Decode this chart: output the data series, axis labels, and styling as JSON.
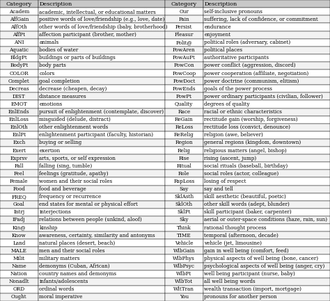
{
  "left_rows": [
    [
      "Academ",
      "academic, intellectual, or educational matters"
    ],
    [
      "AffGain",
      "positive words of love/friendship (e.g., love, date)"
    ],
    [
      "AffOth",
      "other words of love/friendship (baby, brotherhood)"
    ],
    [
      "AffPt",
      "affection participant (brother, mother)"
    ],
    [
      "ANI",
      "animals"
    ],
    [
      "Aquatic",
      "bodies of water"
    ],
    [
      "BldgPt",
      "buildings or parts of buildings"
    ],
    [
      "BodyPt",
      "body parts"
    ],
    [
      "COLOR",
      "colors"
    ],
    [
      "Complet",
      "goal completion"
    ],
    [
      "Decreas",
      "decrease (cheapen, decay)"
    ],
    [
      "DIST",
      "distance measures"
    ],
    [
      "EMOT",
      "emotions"
    ],
    [
      "EnlEnds",
      "pursuit of enlightenment (contemplate, discover)"
    ],
    [
      "EnlLoss",
      "misguided (delude, distract)"
    ],
    [
      "EnlOth",
      "other enlightenment words"
    ],
    [
      "EnlPt",
      "enlightenment participant (faculty, historian)"
    ],
    [
      "Exch",
      "buying or selling"
    ],
    [
      "Exert",
      "exertion"
    ],
    [
      "Exprsv",
      "arts, sports, or self expression"
    ],
    [
      "Fall",
      "falling (sing, tumble)"
    ],
    [
      "Feel",
      "feelings (gratitude, apathy)"
    ],
    [
      "Female",
      "women and their social roles"
    ],
    [
      "Food",
      "food and beverage"
    ],
    [
      "FREQ",
      "frequency or recurrence"
    ],
    [
      "Goal",
      "end states for mental or physical effort"
    ],
    [
      "Intrj",
      "interjections"
    ],
    [
      "IPadj",
      "relations between people (unkind, aloof)"
    ],
    [
      "Kin@",
      "kinship"
    ],
    [
      "Know",
      "awareness, certainty, similarity and antonyms"
    ],
    [
      "Land",
      "natural places (desert, beach)"
    ],
    [
      "MALE",
      "men and their social roles"
    ],
    [
      "Milit",
      "military matters"
    ],
    [
      "Name",
      "demonyms (Cuban, African)"
    ],
    [
      "Nation",
      "country names and demonyms"
    ],
    [
      "Nonadlt",
      "infants/adolescents"
    ],
    [
      "ORD",
      "ordinal words"
    ],
    [
      "Ought",
      "moral imperative"
    ]
  ],
  "right_rows": [
    [
      "Our",
      "self-inclusive pronouns"
    ],
    [
      "Pain",
      "suffering, lack of confidence, or commitment"
    ],
    [
      "Persist",
      "endurance"
    ],
    [
      "Pleasur",
      "enjoyment"
    ],
    [
      "Polit@",
      "political roles (adversary, cabinet)"
    ],
    [
      "PowAren",
      "political places"
    ],
    [
      "PowAuPt",
      "authoritative participants"
    ],
    [
      "PowCon",
      "power conflict (aggression, discord)"
    ],
    [
      "PowCoop",
      "power cooperation (affiliate, negotiation)"
    ],
    [
      "PowDoct",
      "power doctrine (communism, elitism)"
    ],
    [
      "PowEnds",
      "goals of the power process"
    ],
    [
      "PowPt",
      "power ordinary participants (civilian, follower)"
    ],
    [
      "Quality",
      "degrees of quality"
    ],
    [
      "Race",
      "racial or ethnic characteristics"
    ],
    [
      "ReGain",
      "rectitude gain (worship, forgiveness)"
    ],
    [
      "ReLoss",
      "rectitude loss (convict, denounce)"
    ],
    [
      "ReRelig",
      "religion (awe, believer)"
    ],
    [
      "Region",
      "general regions (kingdom, downtown)"
    ],
    [
      "Relig",
      "religious matters (angel, bishop)"
    ],
    [
      "Rise",
      "rising (ascent, jump)"
    ],
    [
      "Ritual",
      "social rituals (baseball, birthday)"
    ],
    [
      "Role",
      "social roles (actor, colleague)"
    ],
    [
      "RspLoss",
      "losing of respect"
    ],
    [
      "Say",
      "say and tell"
    ],
    [
      "SklAsth",
      "skill aesthetic (beautiful, poetic)"
    ],
    [
      "SklOth",
      "other skill words (adept, blunder)"
    ],
    [
      "SklPt",
      "skill participant (baker, carpenter)"
    ],
    [
      "Sky",
      "aerial or outer-space conditions (haze, rain, sun)"
    ],
    [
      "Think",
      "rational thought process"
    ],
    [
      "TIME",
      "temporal (afternoon, decade)"
    ],
    [
      "Vehicle",
      "vehicle (jet, limousine)"
    ],
    [
      "WlbGain",
      "gain in well being (comfort, feed)"
    ],
    [
      "WlbPhys",
      "physical aspects of well being (bone, cancer)"
    ],
    [
      "WlbPsyc",
      "psychological aspects of well being (anger, cry)"
    ],
    [
      "WlbPt",
      "well being participant (nurse, baby)"
    ],
    [
      "WlbTot",
      "all well being words"
    ],
    [
      "WltTran",
      "wealth transaction (import, mortgage)"
    ],
    [
      "You",
      "pronouns for another person"
    ]
  ],
  "header_bg": "#c8c8c8",
  "row_bg_odd": "#ffffff",
  "row_bg_even": "#f2f2f2",
  "border_color": "#000000",
  "text_color": "#000000",
  "font_size": 5.2,
  "header_font_size": 5.8,
  "fig_width": 4.74,
  "fig_height": 4.33,
  "dpi": 100
}
